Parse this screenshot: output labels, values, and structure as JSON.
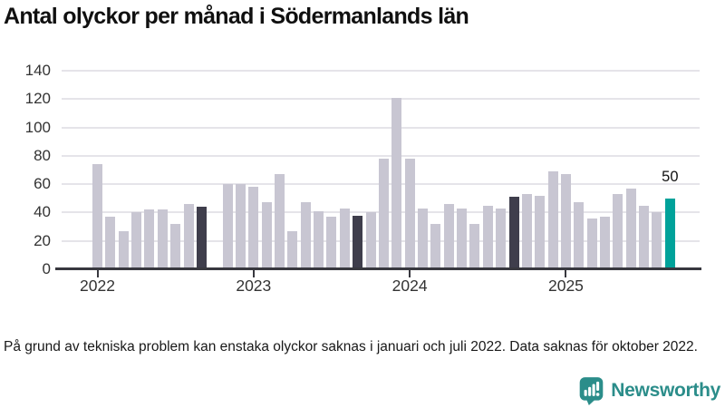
{
  "title": "Antal olyckor per månad i Södermanlands län",
  "footnote": "På grund av tekniska problem kan enstaka olyckor saknas i januari och juli 2022. Data saknas för oktober 2022.",
  "logo": {
    "text": "Newsworthy",
    "icon": "newsworthy-chart-bubble-icon"
  },
  "colors": {
    "bar_default": "#c8c6d2",
    "bar_highlight_dark": "#3f3e4c",
    "bar_latest_teal": "#00a29a",
    "gridline": "#e5e4e9",
    "axis": "#38383f",
    "tick_text": "#333333",
    "brand_teal": "#2b8d8a"
  },
  "chart_data": {
    "type": "bar",
    "title": "Antal olyckor per månad i Södermanlands län",
    "xlabel": "",
    "ylabel": "",
    "ylim": [
      0,
      140
    ],
    "y_ticks": [
      0,
      20,
      40,
      60,
      80,
      100,
      120,
      140
    ],
    "x_tick_labels": [
      "2022",
      "2023",
      "2024",
      "2025"
    ],
    "grid": "horizontal",
    "series": [
      {
        "name": "Antal olyckor per månad",
        "points": [
          {
            "month": "2022-01",
            "value": 74
          },
          {
            "month": "2022-02",
            "value": 37
          },
          {
            "month": "2022-03",
            "value": 27
          },
          {
            "month": "2022-04",
            "value": 40
          },
          {
            "month": "2022-05",
            "value": 42
          },
          {
            "month": "2022-06",
            "value": 42
          },
          {
            "month": "2022-07",
            "value": 32
          },
          {
            "month": "2022-08",
            "value": 46
          },
          {
            "month": "2022-09",
            "value": 44
          },
          {
            "month": "2022-10",
            "value": null
          },
          {
            "month": "2022-11",
            "value": 60
          },
          {
            "month": "2022-12",
            "value": 60
          },
          {
            "month": "2023-01",
            "value": 58
          },
          {
            "month": "2023-02",
            "value": 47
          },
          {
            "month": "2023-03",
            "value": 67
          },
          {
            "month": "2023-04",
            "value": 27
          },
          {
            "month": "2023-05",
            "value": 47
          },
          {
            "month": "2023-06",
            "value": 41
          },
          {
            "month": "2023-07",
            "value": 37
          },
          {
            "month": "2023-08",
            "value": 43
          },
          {
            "month": "2023-09",
            "value": 38
          },
          {
            "month": "2023-10",
            "value": 40
          },
          {
            "month": "2023-11",
            "value": 78
          },
          {
            "month": "2023-12",
            "value": 121
          },
          {
            "month": "2024-01",
            "value": 78
          },
          {
            "month": "2024-02",
            "value": 43
          },
          {
            "month": "2024-03",
            "value": 32
          },
          {
            "month": "2024-04",
            "value": 46
          },
          {
            "month": "2024-05",
            "value": 43
          },
          {
            "month": "2024-06",
            "value": 32
          },
          {
            "month": "2024-07",
            "value": 45
          },
          {
            "month": "2024-08",
            "value": 43
          },
          {
            "month": "2024-09",
            "value": 51
          },
          {
            "month": "2024-10",
            "value": 53
          },
          {
            "month": "2024-11",
            "value": 52
          },
          {
            "month": "2024-12",
            "value": 69
          },
          {
            "month": "2025-01",
            "value": 67
          },
          {
            "month": "2025-02",
            "value": 47
          },
          {
            "month": "2025-03",
            "value": 36
          },
          {
            "month": "2025-04",
            "value": 37
          },
          {
            "month": "2025-05",
            "value": 53
          },
          {
            "month": "2025-06",
            "value": 57
          },
          {
            "month": "2025-07",
            "value": 45
          },
          {
            "month": "2025-08",
            "value": 40
          },
          {
            "month": "2025-09",
            "value": 50
          }
        ]
      }
    ],
    "highlight_dark_months": [
      "2022-09",
      "2023-09",
      "2024-09"
    ],
    "highlight_teal_months": [
      "2025-09"
    ],
    "missing_months": [
      "2022-10"
    ],
    "data_label": {
      "month": "2025-09",
      "text": "50"
    }
  }
}
